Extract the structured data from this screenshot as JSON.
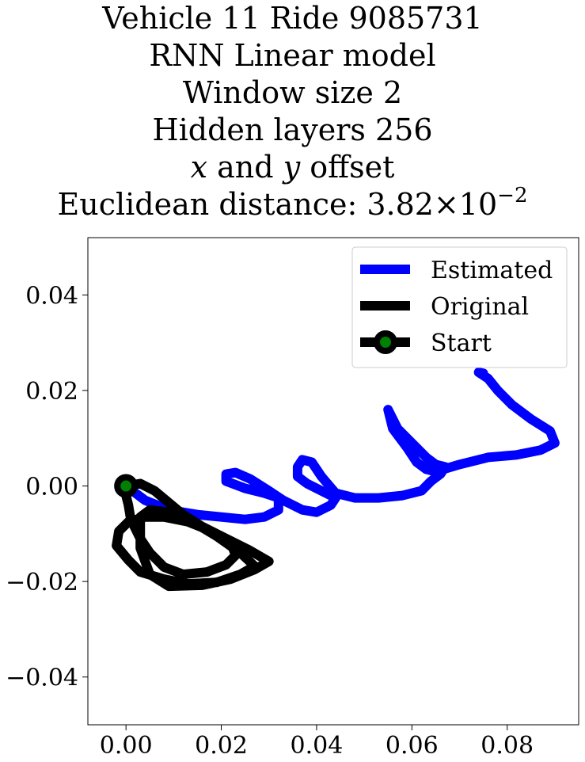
{
  "chart_data": {
    "type": "line",
    "title": {
      "vehicle_line": "Vehicle 11 Ride 9085731",
      "model_line": "RNN Linear model",
      "window_line": "Window size 2",
      "hidden_line": "Hidden layers 256",
      "offset_x": "x",
      "offset_mid": " and ",
      "offset_y": "y",
      "offset_rest": " offset",
      "distance_prefix": "Euclidean distance: ",
      "distance_mantissa": "3.82",
      "distance_times": "×10",
      "distance_exponent": "−2"
    },
    "xlabel": "",
    "ylabel": "",
    "xlim": [
      -0.008,
      0.095
    ],
    "ylim": [
      -0.05,
      0.052
    ],
    "xticks": [
      {
        "value": 0.0,
        "label": "0.00"
      },
      {
        "value": 0.02,
        "label": "0.02"
      },
      {
        "value": 0.04,
        "label": "0.04"
      },
      {
        "value": 0.06,
        "label": "0.06"
      },
      {
        "value": 0.08,
        "label": "0.08"
      }
    ],
    "yticks": [
      {
        "value": 0.04,
        "label": "0.04"
      },
      {
        "value": 0.02,
        "label": "0.02"
      },
      {
        "value": 0.0,
        "label": "0.00"
      },
      {
        "value": -0.02,
        "label": "−0.02"
      },
      {
        "value": -0.04,
        "label": "−0.04"
      }
    ],
    "grid": false,
    "legend_position": "top-right",
    "series": [
      {
        "name": "Estimated",
        "color": "#0000ff",
        "points": [
          [
            0.0,
            0.0
          ],
          [
            0.004,
            -0.003
          ],
          [
            0.009,
            -0.005
          ],
          [
            0.015,
            -0.006
          ],
          [
            0.02,
            -0.0065
          ],
          [
            0.025,
            -0.007
          ],
          [
            0.029,
            -0.0065
          ],
          [
            0.032,
            -0.005
          ],
          [
            0.032,
            -0.0025
          ],
          [
            0.029,
            -0.0015
          ],
          [
            0.025,
            -0.0005
          ],
          [
            0.021,
            0.001
          ],
          [
            0.021,
            0.0025
          ],
          [
            0.023,
            0.0028
          ],
          [
            0.026,
            0.0015
          ],
          [
            0.03,
            -0.001
          ],
          [
            0.033,
            -0.003
          ],
          [
            0.037,
            -0.005
          ],
          [
            0.04,
            -0.0055
          ],
          [
            0.043,
            -0.004
          ],
          [
            0.044,
            -0.0025
          ],
          [
            0.041,
            -0.001
          ],
          [
            0.038,
            0.0005
          ],
          [
            0.036,
            0.002
          ],
          [
            0.036,
            0.004
          ],
          [
            0.037,
            0.0055
          ],
          [
            0.039,
            0.005
          ],
          [
            0.041,
            0.002
          ],
          [
            0.044,
            -0.0015
          ],
          [
            0.048,
            -0.0025
          ],
          [
            0.053,
            -0.0025
          ],
          [
            0.058,
            -0.002
          ],
          [
            0.062,
            -0.001
          ],
          [
            0.064,
            0.001
          ],
          [
            0.066,
            0.0025
          ],
          [
            0.067,
            0.004
          ],
          [
            0.065,
            0.0045
          ],
          [
            0.063,
            0.006
          ],
          [
            0.06,
            0.009
          ],
          [
            0.057,
            0.012
          ],
          [
            0.055,
            0.016
          ],
          [
            0.056,
            0.012
          ],
          [
            0.059,
            0.008
          ],
          [
            0.061,
            0.005
          ],
          [
            0.063,
            0.0035
          ],
          [
            0.065,
            0.003
          ],
          [
            0.07,
            0.0045
          ],
          [
            0.076,
            0.006
          ],
          [
            0.082,
            0.0065
          ],
          [
            0.087,
            0.0075
          ],
          [
            0.09,
            0.009
          ],
          [
            0.089,
            0.0115
          ],
          [
            0.085,
            0.014
          ],
          [
            0.081,
            0.017
          ],
          [
            0.078,
            0.02
          ],
          [
            0.076,
            0.0225
          ],
          [
            0.074,
            0.0238
          ],
          [
            0.075,
            0.0236
          ]
        ]
      },
      {
        "name": "Original",
        "color": "#000000",
        "points": [
          [
            0.0,
            0.0
          ],
          [
            0.003,
            0.0005
          ],
          [
            0.006,
            -0.001
          ],
          [
            0.009,
            -0.0035
          ],
          [
            0.012,
            -0.006
          ],
          [
            0.016,
            -0.0085
          ],
          [
            0.021,
            -0.011
          ],
          [
            0.026,
            -0.0135
          ],
          [
            0.03,
            -0.0158
          ],
          [
            0.027,
            -0.0175
          ],
          [
            0.022,
            -0.0195
          ],
          [
            0.016,
            -0.0208
          ],
          [
            0.009,
            -0.021
          ],
          [
            0.005,
            -0.0185
          ],
          [
            0.003,
            -0.013
          ],
          [
            0.003,
            -0.0065
          ],
          [
            0.005,
            -0.005
          ],
          [
            0.009,
            -0.0055
          ],
          [
            0.014,
            -0.0075
          ],
          [
            0.019,
            -0.0105
          ],
          [
            0.024,
            -0.014
          ],
          [
            0.027,
            -0.0168
          ],
          [
            0.024,
            -0.0185
          ],
          [
            0.019,
            -0.0202
          ],
          [
            0.013,
            -0.0205
          ],
          [
            0.008,
            -0.0195
          ],
          [
            0.003,
            -0.018
          ],
          [
            0.0005,
            -0.0155
          ],
          [
            -0.002,
            -0.0125
          ],
          [
            -0.0015,
            -0.0095
          ],
          [
            0.0005,
            -0.0075
          ],
          [
            0.004,
            -0.0065
          ],
          [
            0.008,
            -0.0065
          ],
          [
            0.013,
            -0.0075
          ],
          [
            0.018,
            -0.0095
          ],
          [
            0.022,
            -0.0118
          ],
          [
            0.023,
            -0.0145
          ],
          [
            0.021,
            -0.0165
          ],
          [
            0.017,
            -0.018
          ],
          [
            0.012,
            -0.0185
          ],
          [
            0.008,
            -0.017
          ],
          [
            0.005,
            -0.014
          ],
          [
            0.003,
            -0.011
          ],
          [
            0.001,
            -0.007
          ],
          [
            0.0005,
            -0.004
          ],
          [
            0.0,
            -0.002
          ]
        ]
      },
      {
        "name": "Start",
        "color": "#000000",
        "marker_face": "#008000",
        "points": [
          [
            0.0,
            0.0
          ]
        ]
      }
    ]
  }
}
